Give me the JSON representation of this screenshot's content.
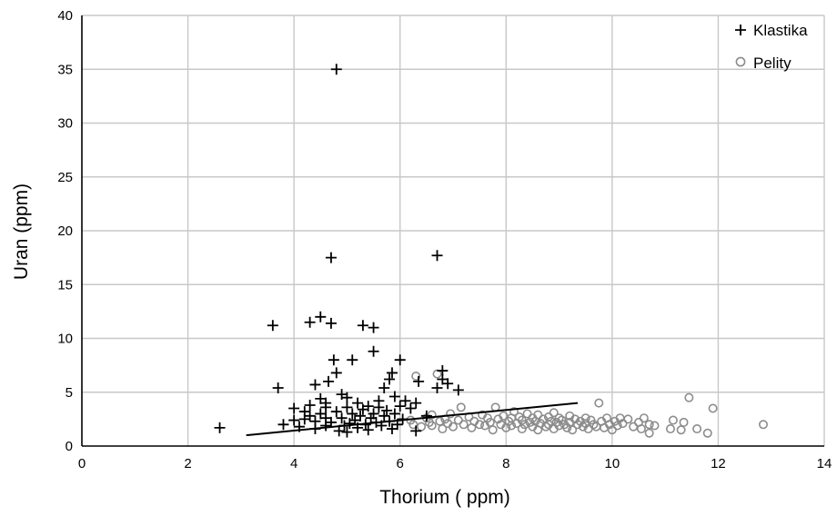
{
  "chart_data": {
    "type": "scatter",
    "xlabel": "Thorium ( ppm)",
    "ylabel": "Uran (ppm)",
    "xlim": [
      0,
      14
    ],
    "ylim": [
      0,
      40
    ],
    "x_ticks": [
      "0",
      "2",
      "4",
      "6",
      "8",
      "10",
      "12",
      "14"
    ],
    "y_ticks": [
      "0",
      "5",
      "10",
      "15",
      "20",
      "25",
      "30",
      "35",
      "40"
    ],
    "grid": true,
    "legend_position": "top-right",
    "colors": {
      "klastika": "#000000",
      "pelity": "#8c8c8c",
      "grid": "#c8c8c8",
      "trendline": "#000000"
    },
    "series": [
      {
        "name": "Klastika",
        "marker": "plus",
        "points": [
          [
            2.6,
            1.7
          ],
          [
            3.6,
            11.2
          ],
          [
            3.7,
            5.4
          ],
          [
            3.8,
            2.0
          ],
          [
            4.0,
            2.4
          ],
          [
            4.0,
            3.5
          ],
          [
            4.1,
            1.8
          ],
          [
            4.2,
            2.5
          ],
          [
            4.2,
            3.2
          ],
          [
            4.3,
            2.8
          ],
          [
            4.3,
            3.8
          ],
          [
            4.3,
            11.5
          ],
          [
            4.4,
            1.6
          ],
          [
            4.4,
            5.7
          ],
          [
            4.4,
            2.3
          ],
          [
            4.5,
            12.0
          ],
          [
            4.5,
            3.0
          ],
          [
            4.5,
            4.4
          ],
          [
            4.6,
            1.9
          ],
          [
            4.6,
            2.6
          ],
          [
            4.6,
            3.6
          ],
          [
            4.6,
            4.0
          ],
          [
            4.65,
            6.0
          ],
          [
            4.7,
            11.4
          ],
          [
            4.7,
            17.5
          ],
          [
            4.7,
            2.2
          ],
          [
            4.75,
            8.0
          ],
          [
            4.8,
            35.0
          ],
          [
            4.8,
            3.2
          ],
          [
            4.8,
            6.8
          ],
          [
            4.85,
            1.4
          ],
          [
            4.9,
            2.6
          ],
          [
            4.9,
            4.8
          ],
          [
            4.95,
            1.9
          ],
          [
            5.0,
            1.3
          ],
          [
            5.0,
            3.6
          ],
          [
            5.0,
            4.5
          ],
          [
            5.05,
            2.1
          ],
          [
            5.1,
            3.0
          ],
          [
            5.1,
            8.0
          ],
          [
            5.15,
            2.4
          ],
          [
            5.2,
            1.7
          ],
          [
            5.2,
            4.0
          ],
          [
            5.25,
            2.8
          ],
          [
            5.3,
            3.4
          ],
          [
            5.3,
            11.2
          ],
          [
            5.35,
            2.0
          ],
          [
            5.4,
            3.7
          ],
          [
            5.4,
            1.5
          ],
          [
            5.45,
            2.6
          ],
          [
            5.5,
            3.0
          ],
          [
            5.5,
            8.8
          ],
          [
            5.5,
            11.0
          ],
          [
            5.55,
            2.2
          ],
          [
            5.6,
            3.6
          ],
          [
            5.6,
            4.2
          ],
          [
            5.65,
            1.9
          ],
          [
            5.7,
            2.8
          ],
          [
            5.7,
            5.4
          ],
          [
            5.75,
            3.3
          ],
          [
            5.8,
            2.3
          ],
          [
            5.8,
            6.2
          ],
          [
            5.85,
            1.6
          ],
          [
            5.85,
            6.8
          ],
          [
            5.9,
            3.0
          ],
          [
            5.9,
            4.6
          ],
          [
            5.95,
            2.0
          ],
          [
            6.0,
            8.0
          ],
          [
            6.0,
            3.7
          ],
          [
            6.05,
            2.5
          ],
          [
            6.1,
            4.2
          ],
          [
            6.2,
            3.5
          ],
          [
            6.3,
            1.4
          ],
          [
            6.3,
            4.0
          ],
          [
            6.35,
            6.0
          ],
          [
            6.5,
            2.8
          ],
          [
            6.7,
            17.7
          ],
          [
            6.7,
            5.4
          ],
          [
            6.8,
            7.0
          ],
          [
            6.8,
            6.2
          ],
          [
            6.9,
            5.8
          ],
          [
            7.1,
            5.2
          ]
        ]
      },
      {
        "name": "Pelity",
        "marker": "circle",
        "points": [
          [
            6.2,
            2.4
          ],
          [
            6.25,
            2.0
          ],
          [
            6.3,
            6.5
          ],
          [
            6.4,
            1.8
          ],
          [
            6.5,
            2.6
          ],
          [
            6.55,
            2.2
          ],
          [
            6.6,
            1.9
          ],
          [
            6.6,
            2.9
          ],
          [
            6.7,
            6.7
          ],
          [
            6.75,
            2.3
          ],
          [
            6.8,
            1.6
          ],
          [
            6.85,
            2.5
          ],
          [
            6.9,
            2.1
          ],
          [
            6.95,
            3.0
          ],
          [
            7.0,
            1.8
          ],
          [
            7.1,
            2.4
          ],
          [
            7.15,
            3.6
          ],
          [
            7.2,
            2.0
          ],
          [
            7.3,
            2.7
          ],
          [
            7.35,
            1.7
          ],
          [
            7.4,
            2.3
          ],
          [
            7.5,
            2.0
          ],
          [
            7.55,
            2.9
          ],
          [
            7.6,
            1.9
          ],
          [
            7.65,
            2.6
          ],
          [
            7.7,
            2.2
          ],
          [
            7.75,
            1.5
          ],
          [
            7.8,
            3.6
          ],
          [
            7.85,
            2.5
          ],
          [
            7.9,
            2.0
          ],
          [
            7.95,
            2.8
          ],
          [
            8.0,
            1.7
          ],
          [
            8.05,
            2.3
          ],
          [
            8.1,
            2.6
          ],
          [
            8.1,
            1.9
          ],
          [
            8.15,
            3.2
          ],
          [
            8.2,
            2.1
          ],
          [
            8.25,
            2.7
          ],
          [
            8.3,
            1.6
          ],
          [
            8.3,
            2.4
          ],
          [
            8.35,
            2.0
          ],
          [
            8.4,
            3.0
          ],
          [
            8.45,
            2.2
          ],
          [
            8.5,
            1.8
          ],
          [
            8.5,
            2.6
          ],
          [
            8.55,
            2.3
          ],
          [
            8.6,
            1.5
          ],
          [
            8.6,
            2.9
          ],
          [
            8.65,
            2.1
          ],
          [
            8.7,
            2.5
          ],
          [
            8.75,
            1.8
          ],
          [
            8.8,
            2.7
          ],
          [
            8.8,
            2.0
          ],
          [
            8.85,
            2.3
          ],
          [
            8.9,
            1.6
          ],
          [
            8.9,
            3.1
          ],
          [
            8.95,
            2.2
          ],
          [
            9.0,
            2.6
          ],
          [
            9.0,
            1.9
          ],
          [
            9.05,
            2.4
          ],
          [
            9.1,
            2.0
          ],
          [
            9.15,
            1.7
          ],
          [
            9.2,
            2.8
          ],
          [
            9.2,
            2.2
          ],
          [
            9.25,
            1.5
          ],
          [
            9.3,
            2.5
          ],
          [
            9.35,
            2.0
          ],
          [
            9.4,
            2.3
          ],
          [
            9.45,
            1.8
          ],
          [
            9.5,
            2.6
          ],
          [
            9.5,
            2.1
          ],
          [
            9.55,
            1.6
          ],
          [
            9.6,
            2.4
          ],
          [
            9.65,
            2.0
          ],
          [
            9.7,
            1.8
          ],
          [
            9.75,
            4.0
          ],
          [
            9.8,
            2.3
          ],
          [
            9.85,
            1.7
          ],
          [
            9.9,
            2.6
          ],
          [
            9.95,
            2.0
          ],
          [
            10.0,
            1.5
          ],
          [
            10.05,
            2.3
          ],
          [
            10.1,
            1.9
          ],
          [
            10.15,
            2.6
          ],
          [
            10.2,
            2.1
          ],
          [
            10.3,
            2.5
          ],
          [
            10.4,
            1.8
          ],
          [
            10.5,
            2.2
          ],
          [
            10.55,
            1.6
          ],
          [
            10.6,
            2.6
          ],
          [
            10.7,
            1.2
          ],
          [
            10.7,
            2.0
          ],
          [
            10.8,
            1.9
          ],
          [
            11.1,
            1.6
          ],
          [
            11.15,
            2.4
          ],
          [
            11.3,
            1.5
          ],
          [
            11.35,
            2.2
          ],
          [
            11.45,
            4.5
          ],
          [
            11.6,
            1.6
          ],
          [
            11.8,
            1.2
          ],
          [
            11.9,
            3.5
          ],
          [
            12.85,
            2.0
          ]
        ]
      }
    ],
    "trendline": {
      "x": [
        3.1,
        9.35
      ],
      "y": [
        1.0,
        4.0
      ]
    }
  }
}
